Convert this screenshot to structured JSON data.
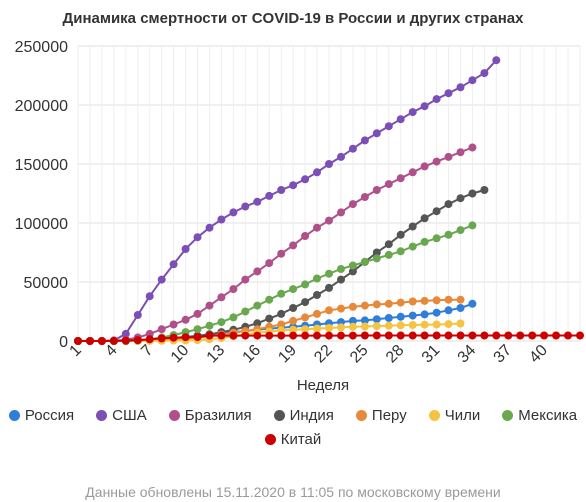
{
  "chart_data": {
    "type": "line",
    "title": "Динамика смертности от COVID-19 в России и других странах",
    "xlabel": "Неделя",
    "ylabel": "",
    "xlim": [
      1,
      43
    ],
    "ylim": [
      0,
      250000
    ],
    "x_ticks": [
      1,
      4,
      7,
      10,
      13,
      16,
      19,
      22,
      25,
      28,
      31,
      34,
      37,
      40
    ],
    "y_ticks": [
      0,
      50000,
      100000,
      150000,
      200000,
      250000
    ],
    "grid": true,
    "legend_position": "bottom",
    "series": [
      {
        "name": "Россия",
        "color": "#2f7ed8",
        "x": [
          1,
          5,
          6,
          7,
          8,
          9,
          10,
          11,
          12,
          13,
          14,
          15,
          16,
          17,
          18,
          19,
          20,
          21,
          22,
          23,
          24,
          25,
          26,
          27,
          28,
          29,
          30,
          31,
          32,
          33,
          34
        ],
        "values": [
          0,
          100,
          500,
          1000,
          1700,
          2500,
          3500,
          4500,
          5500,
          6500,
          7500,
          8500,
          9500,
          10500,
          11300,
          12000,
          13000,
          14000,
          15000,
          16000,
          17000,
          17500,
          18500,
          19500,
          20500,
          21500,
          22500,
          24000,
          26000,
          28000,
          31500
        ]
      },
      {
        "name": "США",
        "color": "#7b4fb5",
        "x": [
          1,
          2,
          3,
          4,
          5,
          6,
          7,
          8,
          9,
          10,
          11,
          12,
          13,
          14,
          15,
          16,
          17,
          18,
          19,
          20,
          21,
          22,
          23,
          24,
          25,
          26,
          27,
          28,
          29,
          30,
          31,
          32,
          33,
          34,
          35,
          36
        ],
        "values": [
          0,
          0,
          0,
          500,
          6000,
          22000,
          38000,
          52000,
          65000,
          78000,
          88000,
          96000,
          103000,
          109000,
          114000,
          118000,
          123000,
          128000,
          132000,
          137000,
          143000,
          150000,
          156000,
          163000,
          170000,
          176000,
          182000,
          188000,
          194000,
          199000,
          205000,
          210000,
          215000,
          221000,
          227000,
          238000
        ]
      },
      {
        "name": "Бразилия",
        "color": "#b0508a",
        "x": [
          1,
          2,
          3,
          4,
          5,
          6,
          7,
          8,
          9,
          10,
          11,
          12,
          13,
          14,
          15,
          16,
          17,
          18,
          19,
          20,
          21,
          22,
          23,
          24,
          25,
          26,
          27,
          28,
          29,
          30,
          31,
          32,
          33,
          34
        ],
        "values": [
          0,
          0,
          0,
          100,
          1000,
          3000,
          6000,
          10000,
          14000,
          18000,
          23000,
          30000,
          37000,
          44000,
          52000,
          59000,
          66000,
          74000,
          81000,
          89000,
          96000,
          102000,
          109000,
          116000,
          122000,
          128000,
          133000,
          138000,
          143000,
          148000,
          152000,
          156000,
          160000,
          164000
        ]
      },
      {
        "name": "Индия",
        "color": "#555555",
        "x": [
          1,
          2,
          3,
          4,
          5,
          6,
          7,
          8,
          9,
          10,
          11,
          12,
          13,
          14,
          15,
          16,
          17,
          18,
          19,
          20,
          21,
          22,
          23,
          24,
          25,
          26,
          27,
          28,
          29,
          30,
          31,
          32,
          33,
          34,
          35
        ],
        "values": [
          0,
          0,
          0,
          0,
          100,
          300,
          700,
          1200,
          2000,
          3000,
          4200,
          5700,
          7500,
          9500,
          12000,
          15000,
          19000,
          23000,
          28000,
          33000,
          39000,
          45000,
          52000,
          59000,
          67000,
          75000,
          82000,
          90000,
          97000,
          104000,
          110000,
          116000,
          121000,
          125000,
          128000
        ]
      },
      {
        "name": "Перу",
        "color": "#e8893a",
        "x": [
          1,
          2,
          3,
          4,
          5,
          6,
          7,
          8,
          9,
          10,
          11,
          12,
          13,
          14,
          15,
          16,
          17,
          18,
          19,
          20,
          21,
          22,
          23,
          24,
          25,
          26,
          27,
          28,
          29,
          30,
          31,
          32,
          33
        ],
        "values": [
          0,
          0,
          0,
          0,
          0,
          100,
          300,
          700,
          1200,
          2000,
          3000,
          4000,
          5500,
          7000,
          8500,
          10000,
          12000,
          14000,
          17000,
          20000,
          23000,
          26000,
          27500,
          29000,
          30000,
          31000,
          31500,
          32500,
          33500,
          34000,
          34500,
          35000,
          35000
        ]
      },
      {
        "name": "Чили",
        "color": "#f5c342",
        "x": [
          1,
          2,
          3,
          4,
          5,
          6,
          7,
          8,
          9,
          10,
          11,
          12,
          13,
          14,
          15,
          16,
          17,
          18,
          19,
          20,
          21,
          22,
          23,
          24,
          25,
          26,
          27,
          28,
          29,
          30,
          31,
          32,
          33
        ],
        "values": [
          0,
          0,
          0,
          0,
          0,
          0,
          100,
          200,
          300,
          500,
          800,
          1500,
          2500,
          4000,
          5500,
          7000,
          8000,
          9000,
          9500,
          10000,
          10500,
          11000,
          11500,
          12000,
          12300,
          12600,
          13000,
          13300,
          13600,
          13800,
          14000,
          14300,
          14800
        ]
      },
      {
        "name": "Мексика",
        "color": "#6aa84f",
        "x": [
          1,
          2,
          3,
          4,
          5,
          6,
          7,
          8,
          9,
          10,
          11,
          12,
          13,
          14,
          15,
          16,
          17,
          18,
          19,
          20,
          21,
          22,
          23,
          24,
          25,
          26,
          27,
          28,
          29,
          30,
          31,
          32,
          33,
          34
        ],
        "values": [
          0,
          0,
          0,
          0,
          0,
          500,
          1500,
          3000,
          5000,
          7500,
          10000,
          13000,
          16000,
          20000,
          25000,
          30000,
          35000,
          40000,
          44000,
          48000,
          53000,
          57000,
          61000,
          64000,
          67000,
          70000,
          73000,
          76000,
          80000,
          84000,
          87000,
          90000,
          94000,
          98000
        ]
      },
      {
        "name": "Китай",
        "color": "#cc0000",
        "x": [
          1,
          2,
          3,
          4,
          5,
          6,
          7,
          8,
          9,
          10,
          11,
          12,
          13,
          14,
          15,
          16,
          17,
          18,
          19,
          20,
          21,
          22,
          23,
          24,
          25,
          26,
          27,
          28,
          29,
          30,
          31,
          32,
          33,
          34,
          35,
          36,
          37,
          38,
          39,
          40,
          41,
          42,
          43
        ],
        "values": [
          0,
          0,
          0,
          100,
          300,
          800,
          1500,
          2200,
          2800,
          3200,
          3300,
          4600,
          4600,
          4600,
          4600,
          4600,
          4600,
          4600,
          4600,
          4600,
          4600,
          4600,
          4600,
          4600,
          4700,
          4700,
          4700,
          4700,
          4700,
          4700,
          4700,
          4700,
          4700,
          4700,
          4700,
          4700,
          4700,
          4700,
          4700,
          4700,
          4700,
          4700,
          4700
        ]
      }
    ]
  },
  "footnote": "Данные обновлены 15.11.2020 в 11:05 по московскому времени"
}
